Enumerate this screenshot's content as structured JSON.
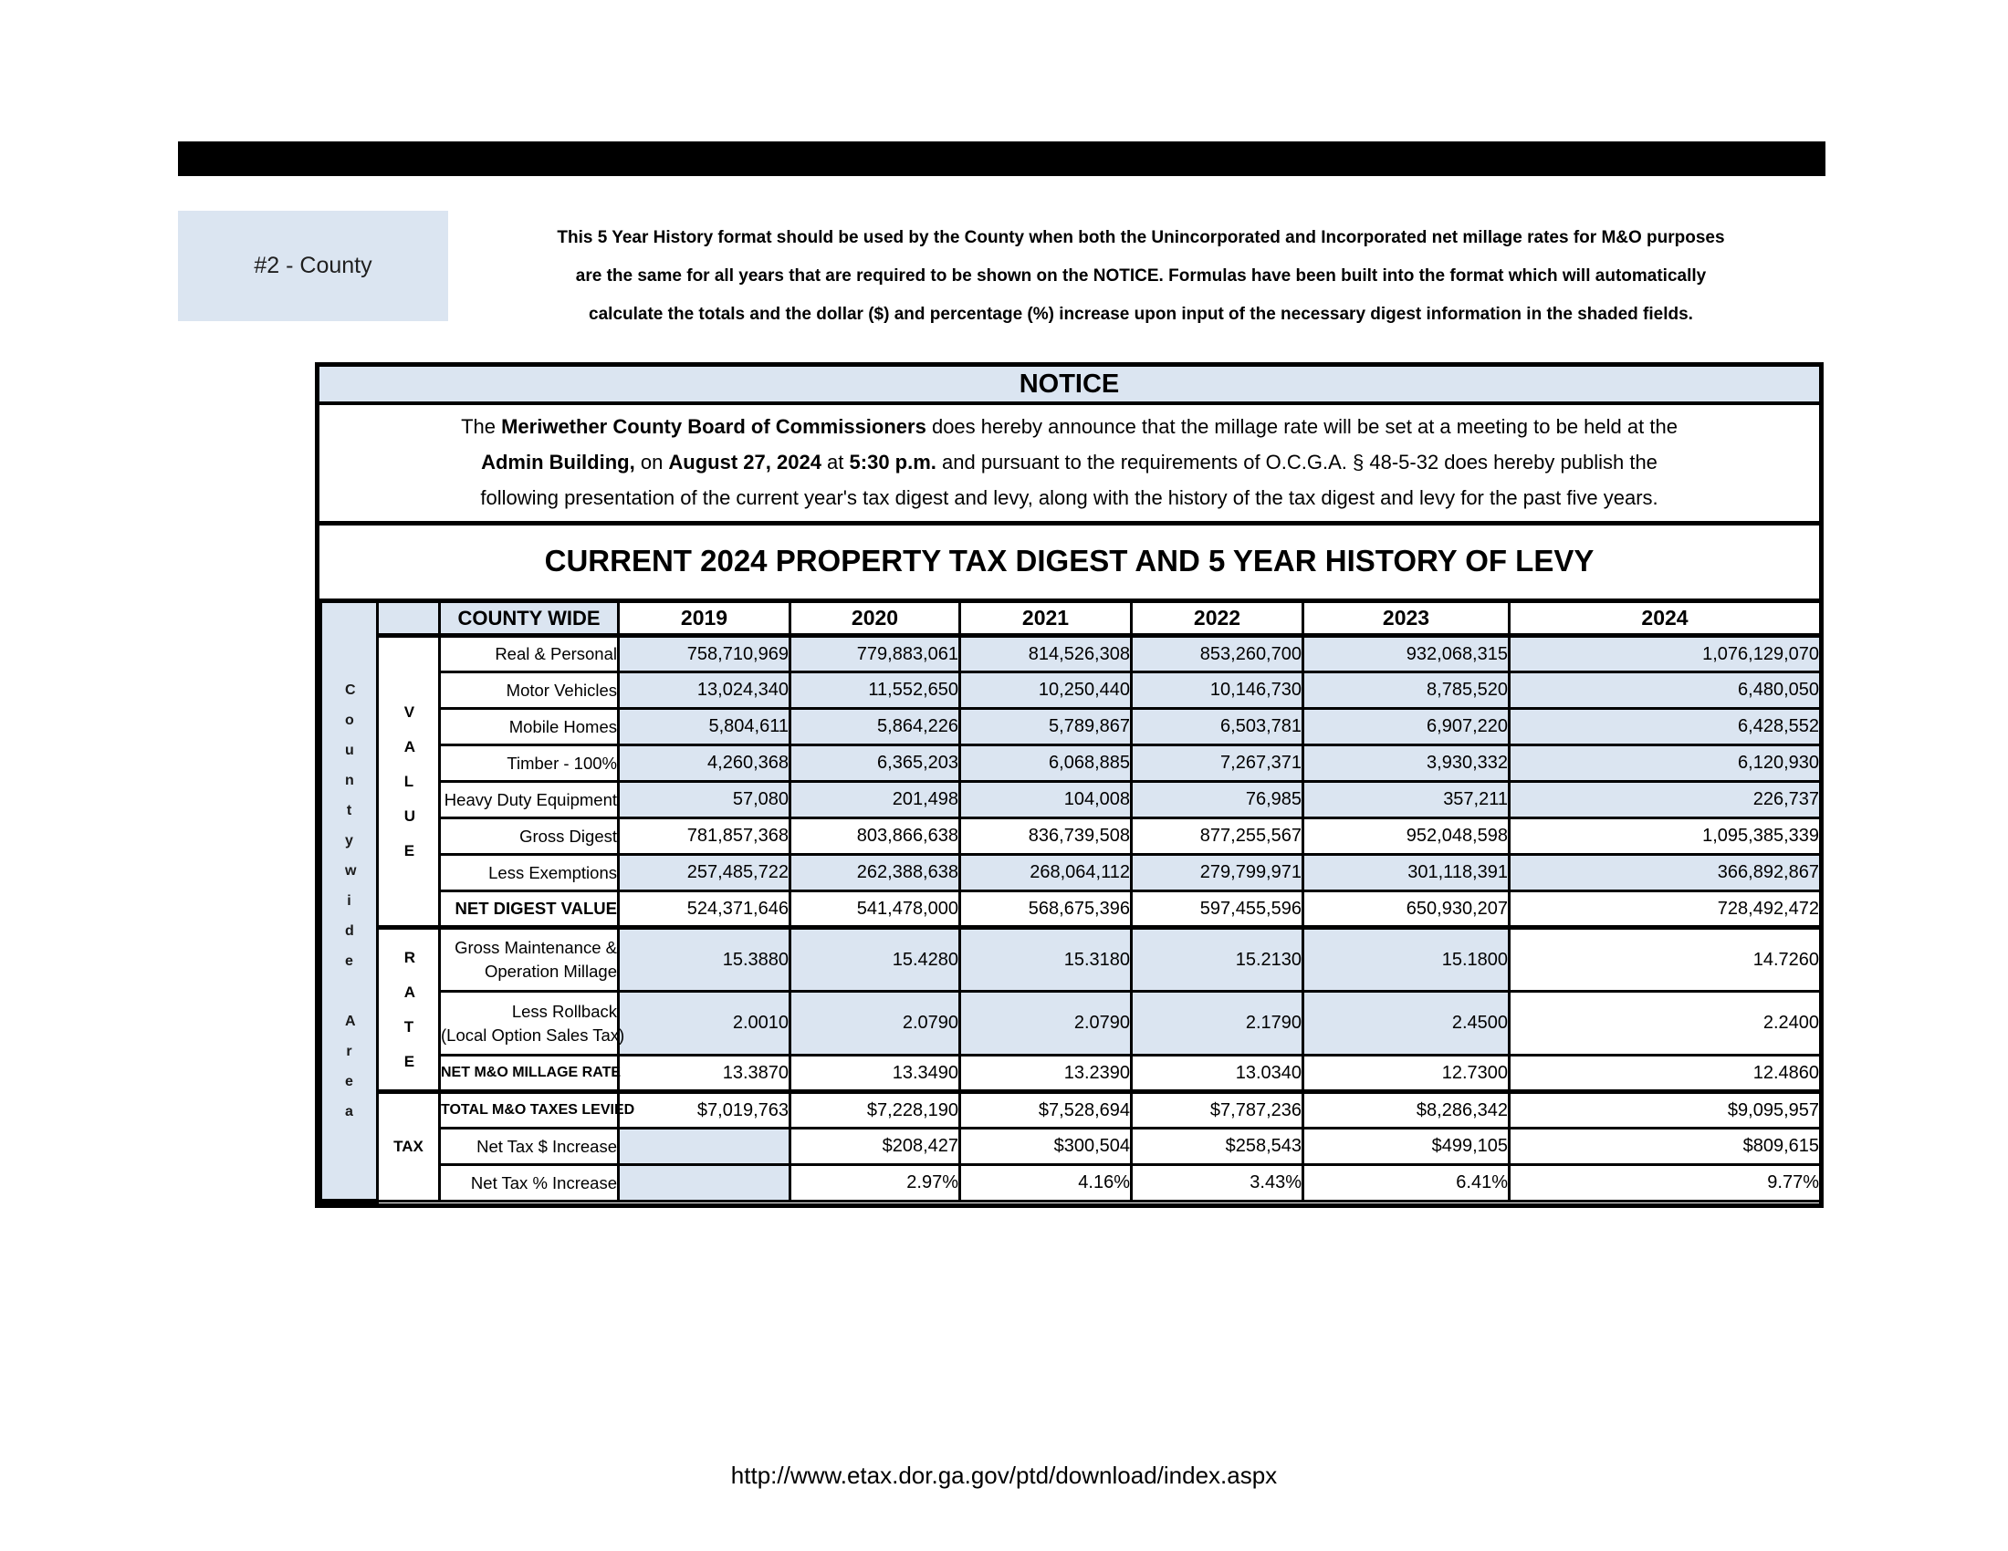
{
  "header": {
    "tag_label": "#2 - County",
    "intro_lines": [
      "This 5 Year History format should be used by the County when both the Unincorporated and Incorporated net millage rates for M&O purposes",
      "are the same for all years that are required to be shown on the NOTICE. Formulas have been built into the format which will automatically",
      "calculate the totals and the dollar ($) and percentage (%) increase upon input of the necessary digest information in the shaded fields."
    ]
  },
  "notice": {
    "title": "NOTICE",
    "lines": [
      {
        "segments": [
          {
            "text": "The "
          },
          {
            "text": "Meriwether County Board of Commissioners"
          },
          {
            "text": " does hereby announce that the millage rate will be set at a meeting to be held at the"
          }
        ]
      },
      {
        "segments": [
          {
            "text": "Admin Building,"
          },
          {
            "text": " on "
          },
          {
            "text": "August 27, 2024"
          },
          {
            "text": " at "
          },
          {
            "text": "5:30 p.m."
          },
          {
            "text": " and pursuant to the requirements of O.C.G.A. § 48-5-32 does hereby publish the"
          }
        ]
      },
      {
        "segments": [
          {
            "text": "following presentation of the current year's tax digest and levy, along with the history of the tax digest and levy for the past five years."
          }
        ]
      }
    ]
  },
  "digest_title": "CURRENT 2024 PROPERTY TAX DIGEST AND 5 YEAR HISTORY OF LEVY",
  "table": {
    "area_label": "Countywide Area",
    "corner_label": "COUNTY WIDE",
    "years": [
      "2019",
      "2020",
      "2021",
      "2022",
      "2023",
      "2024"
    ],
    "section_labels": {
      "value": "VALUE",
      "rate": "RATE",
      "tax": "TAX"
    },
    "rows": [
      {
        "label": "Real & Personal",
        "values": [
          "758,710,969",
          "779,883,061",
          "814,526,308",
          "853,260,700",
          "932,068,315",
          "1,076,129,070"
        ]
      },
      {
        "label": "Motor Vehicles",
        "values": [
          "13,024,340",
          "11,552,650",
          "10,250,440",
          "10,146,730",
          "8,785,520",
          "6,480,050"
        ]
      },
      {
        "label": "Mobile Homes",
        "values": [
          "5,804,611",
          "5,864,226",
          "5,789,867",
          "6,503,781",
          "6,907,220",
          "6,428,552"
        ]
      },
      {
        "label": "Timber - 100%",
        "values": [
          "4,260,368",
          "6,365,203",
          "6,068,885",
          "7,267,371",
          "3,930,332",
          "6,120,930"
        ]
      },
      {
        "label": "Heavy Duty Equipment",
        "values": [
          "57,080",
          "201,498",
          "104,008",
          "76,985",
          "357,211",
          "226,737"
        ]
      },
      {
        "label": "Gross Digest",
        "values": [
          "781,857,368",
          "803,866,638",
          "836,739,508",
          "877,255,567",
          "952,048,598",
          "1,095,385,339"
        ]
      },
      {
        "label": "Less Exemptions",
        "values": [
          "257,485,722",
          "262,388,638",
          "268,064,112",
          "279,799,971",
          "301,118,391",
          "366,892,867"
        ]
      },
      {
        "label": "NET DIGEST VALUE",
        "values": [
          "524,371,646",
          "541,478,000",
          "568,675,396",
          "597,455,596",
          "650,930,207",
          "728,492,472"
        ]
      },
      {
        "label": "Gross Maintenance &",
        "label2": "Operation Millage",
        "values": [
          "15.3880",
          "15.4280",
          "15.3180",
          "15.2130",
          "15.1800",
          "14.7260"
        ]
      },
      {
        "label": "Less Rollback",
        "label2": "(Local Option Sales Tax)",
        "values": [
          "2.0010",
          "2.0790",
          "2.0790",
          "2.1790",
          "2.4500",
          "2.2400"
        ]
      },
      {
        "label": "NET M&O MILLAGE RATE",
        "values": [
          "13.3870",
          "13.3490",
          "13.2390",
          "13.0340",
          "12.7300",
          "12.4860"
        ]
      },
      {
        "label": "TOTAL M&O TAXES LEVIED",
        "values": [
          "$7,019,763",
          "$7,228,190",
          "$7,528,694",
          "$7,787,236",
          "$8,286,342",
          "$9,095,957"
        ]
      },
      {
        "label": "Net Tax $ Increase",
        "values": [
          "",
          "$208,427",
          "$300,504",
          "$258,543",
          "$499,105",
          "$809,615"
        ]
      },
      {
        "label": "Net Tax % Increase",
        "values": [
          "",
          "2.97%",
          "4.16%",
          "3.43%",
          "6.41%",
          "9.77%"
        ]
      }
    ]
  },
  "footer": {
    "url": "http://www.etax.dor.ga.gov/ptd/download/index.aspx"
  },
  "colors": {
    "shaded_field": "#dbe5f1",
    "border": "#000000"
  }
}
